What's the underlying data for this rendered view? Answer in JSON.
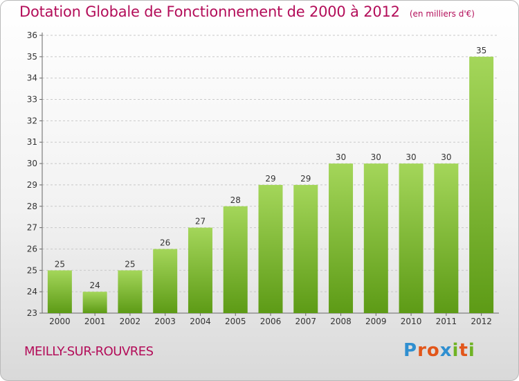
{
  "header": {
    "title": "Dotation Globale de Fonctionnement de 2000 à 2012",
    "subtitle": "(en milliers d'€)"
  },
  "footer": {
    "commune": "MEILLY-SUR-ROUVRES",
    "logo": {
      "text": "Proxiti",
      "letter_colors": [
        "#2f8fd0",
        "#e2561a",
        "#e2561a",
        "#2f8fd0",
        "#6fb324",
        "#e2561a",
        "#6fb324"
      ]
    }
  },
  "colors": {
    "bar_top": "#a4d65a",
    "bar_bottom": "#5d9b16",
    "title": "#b30d59",
    "grid": "#c8c8c8",
    "axis_text": "#333333"
  },
  "chart_data": {
    "type": "bar",
    "categories": [
      "2000",
      "2001",
      "2002",
      "2003",
      "2004",
      "2005",
      "2006",
      "2007",
      "2008",
      "2009",
      "2010",
      "2011",
      "2012"
    ],
    "values": [
      25,
      24,
      25,
      26,
      27,
      28,
      29,
      29,
      30,
      30,
      30,
      30,
      35
    ],
    "data_labels": [
      "25",
      "24",
      "25",
      "26",
      "27",
      "28",
      "29",
      "29",
      "30",
      "30",
      "30",
      "30",
      "35"
    ],
    "title": "Dotation Globale de Fonctionnement de 2000 à 2012",
    "xlabel": "",
    "ylabel": "",
    "ylim": [
      23,
      36
    ],
    "yticks": [
      "23",
      "24",
      "25",
      "26",
      "27",
      "28",
      "29",
      "30",
      "31",
      "32",
      "33",
      "34",
      "35",
      "36"
    ],
    "grid": true,
    "legend": "none"
  }
}
